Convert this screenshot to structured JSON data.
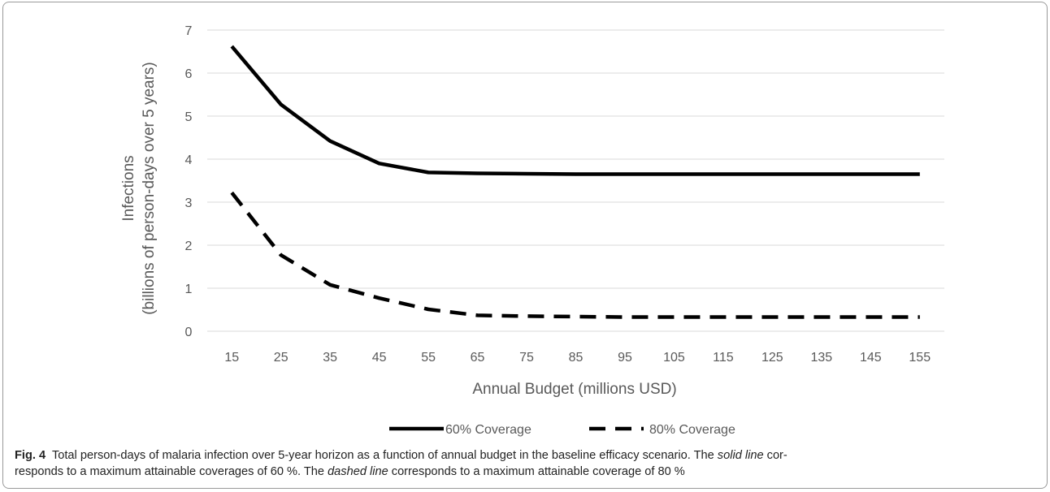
{
  "chart_data": {
    "type": "line",
    "x": [
      15,
      25,
      35,
      45,
      55,
      65,
      75,
      85,
      95,
      105,
      115,
      125,
      135,
      145,
      155
    ],
    "series": [
      {
        "name": "60% Coverage",
        "style": "solid",
        "values": [
          6.62,
          5.27,
          4.42,
          3.9,
          3.69,
          3.67,
          3.66,
          3.65,
          3.65,
          3.65,
          3.65,
          3.65,
          3.65,
          3.65,
          3.65
        ]
      },
      {
        "name": "80% Coverage",
        "style": "dashed",
        "values": [
          3.22,
          1.77,
          1.08,
          0.77,
          0.51,
          0.37,
          0.35,
          0.34,
          0.33,
          0.33,
          0.33,
          0.33,
          0.33,
          0.33,
          0.33
        ]
      }
    ],
    "xlabel": "Annual Budget (millions USD)",
    "ylabel": [
      "Infections",
      "(billions of person-days over 5 years)"
    ],
    "ylim": [
      0,
      7
    ],
    "yticks": [
      "0",
      "1",
      "2",
      "3",
      "4",
      "5",
      "6",
      "7"
    ],
    "xticks": [
      "15",
      "25",
      "35",
      "45",
      "55",
      "65",
      "75",
      "85",
      "95",
      "105",
      "115",
      "125",
      "135",
      "145",
      "155"
    ],
    "grid": true,
    "legend_position": "bottom",
    "colors": {
      "line": "#000000",
      "grid": "#d9d9d9",
      "text": "#595959"
    }
  },
  "caption": {
    "label": "Fig. 4",
    "t1": "Total person-days of malaria infection over 5-year horizon as a function of annual budget in the baseline efficacy scenario. The ",
    "em1": "solid line",
    "t2": " cor-",
    "t3": "responds to a maximum attainable coverages of 60 %. The ",
    "em2": "dashed line",
    "t4": " corresponds to a maximum attainable coverage of 80 %"
  }
}
